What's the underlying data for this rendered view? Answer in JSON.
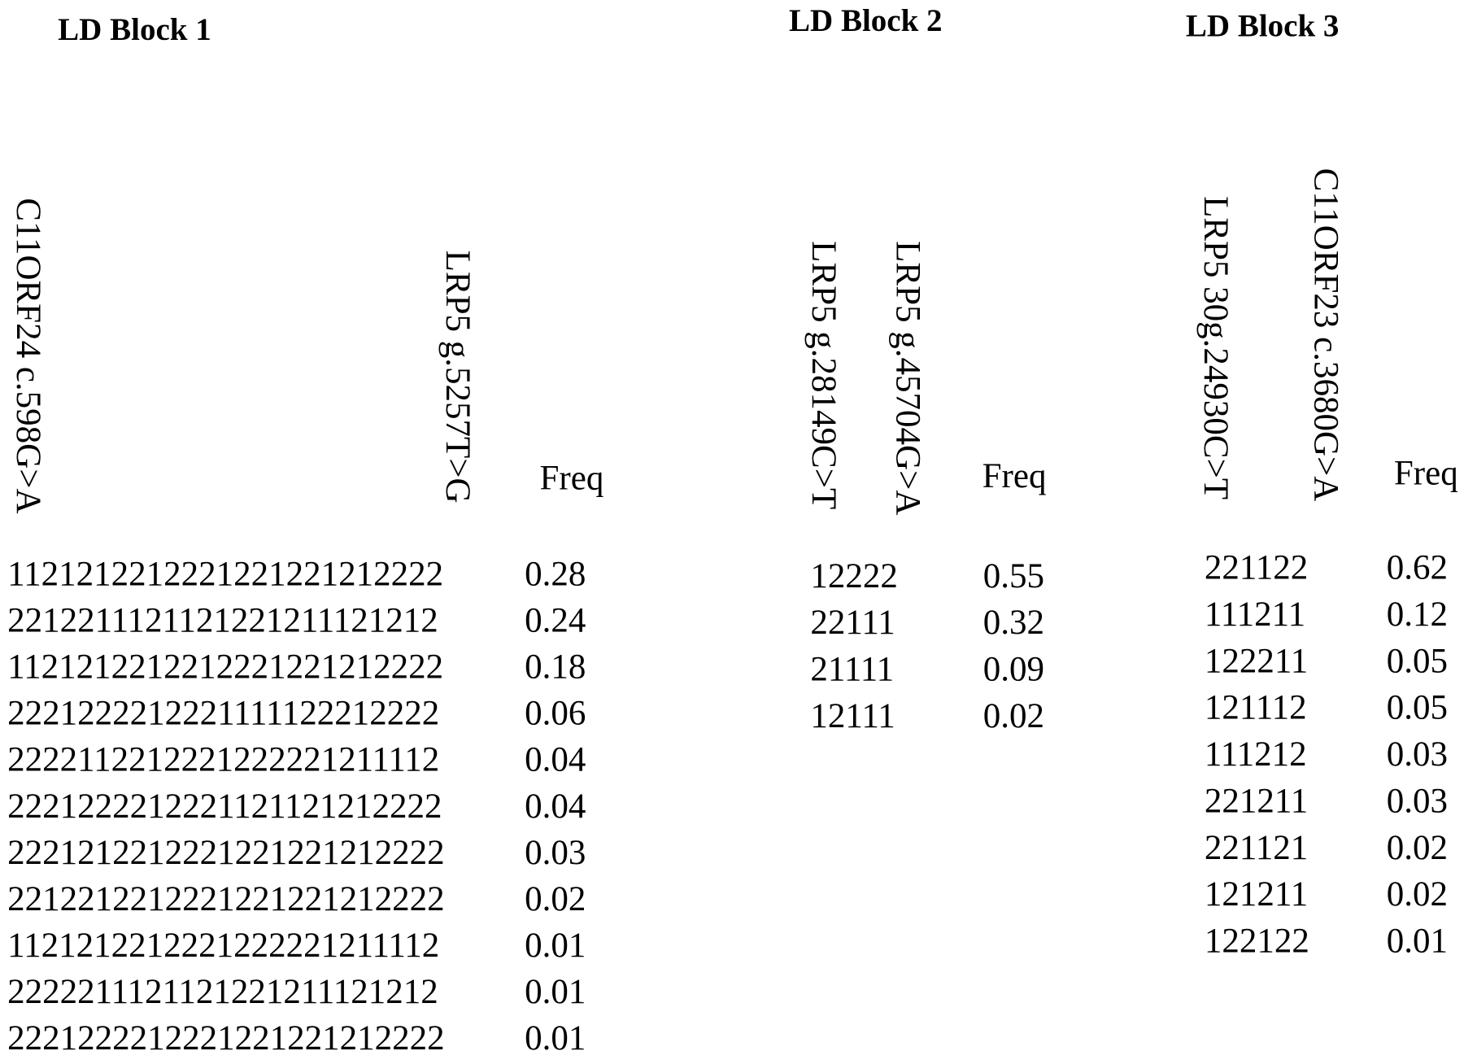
{
  "blocks": [
    {
      "title": "LD Block 1",
      "headers": [
        "C11ORF24 c.598G>A",
        "LRP5 g.5257T>G"
      ],
      "freq_header": "Freq",
      "rows": [
        {
          "haplotype": "1121212212221221221212222",
          "freq": "0.28"
        },
        {
          "haplotype": "2212211121121221211121212",
          "freq": "0.24"
        },
        {
          "haplotype": "1121212212212221221212222",
          "freq": "0.18"
        },
        {
          "haplotype": "2221222212221111122212222",
          "freq": "0.06"
        },
        {
          "haplotype": "2222112212221222221211112",
          "freq": "0.04"
        },
        {
          "haplotype": "2221222212221121121212222",
          "freq": "0.04"
        },
        {
          "haplotype": "2221212212221221221212222",
          "freq": "0.03"
        },
        {
          "haplotype": "2212212212221221221212222",
          "freq": "0.02"
        },
        {
          "haplotype": "1121212212221222221211112",
          "freq": "0.01"
        },
        {
          "haplotype": "2222211121121221211121212",
          "freq": "0.01"
        },
        {
          "haplotype": "2221222212221221221212222",
          "freq": "0.01"
        }
      ]
    },
    {
      "title": "LD Block 2",
      "headers": [
        "LRP5 g.28149C>T",
        "LRP5 g.45704G>A"
      ],
      "freq_header": "Freq",
      "rows": [
        {
          "haplotype": "12222",
          "freq": "0.55"
        },
        {
          "haplotype": "22111",
          "freq": "0.32"
        },
        {
          "haplotype": "21111",
          "freq": "0.09"
        },
        {
          "haplotype": "12111",
          "freq": "0.02"
        }
      ]
    },
    {
      "title": "LD Block 3",
      "headers": [
        "LRP5 30g.24930C>T",
        "C11ORF23 c.3680G>A"
      ],
      "freq_header": "Freq",
      "rows": [
        {
          "haplotype": "221122",
          "freq": "0.62"
        },
        {
          "haplotype": "111211",
          "freq": "0.12"
        },
        {
          "haplotype": "122211",
          "freq": "0.05"
        },
        {
          "haplotype": "121112",
          "freq": "0.05"
        },
        {
          "haplotype": "111212",
          "freq": "0.03"
        },
        {
          "haplotype": "221211",
          "freq": "0.03"
        },
        {
          "haplotype": "221121",
          "freq": "0.02"
        },
        {
          "haplotype": "121211",
          "freq": "0.02"
        },
        {
          "haplotype": "122122",
          "freq": "0.01"
        }
      ]
    }
  ]
}
